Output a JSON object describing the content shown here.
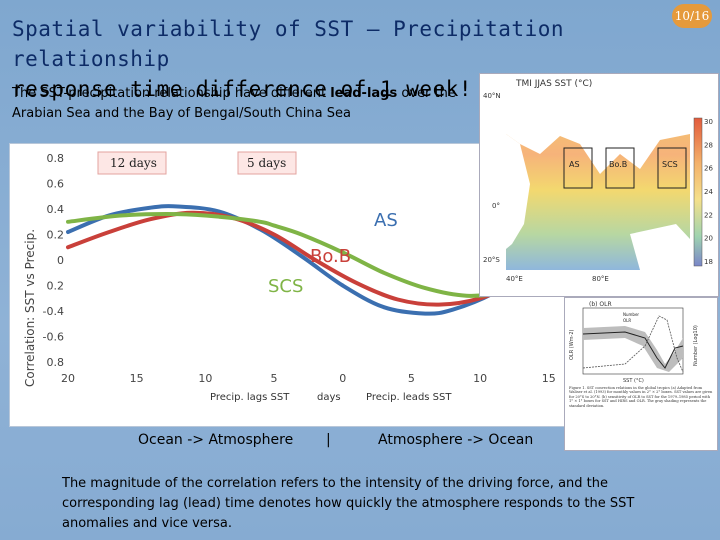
{
  "title_line1": "Spatial variability of SST – Precipitation relationship",
  "title_line2": "response time difference of 1 week!",
  "page_number": "10/16",
  "intro_before": "The SST-precipitation relationship have different ",
  "intro_bold": "lead-lags",
  "intro_after": " over the Arabian Sea and the Bay of Bengal/South China Sea",
  "chart_data": {
    "type": "line",
    "ylabel": "Correlation: SST vs Precip.",
    "x_ticks": [
      "20",
      "15",
      "10",
      "5",
      "0",
      "5",
      "10",
      "15"
    ],
    "y_ticks": [
      "0.8",
      "0.6",
      "0.4",
      "0.2",
      "0",
      "0.2",
      "-0.4",
      "-0.6",
      "0.8"
    ],
    "xlim": [
      -20,
      18
    ],
    "ylim": [
      -0.8,
      0.8
    ],
    "x_axis_text": {
      "left": "Precip. lags SST",
      "center": "days",
      "right": "Precip. leads SST"
    },
    "lag_annotations": [
      "12 days",
      "5 days"
    ],
    "series": [
      {
        "name": "AS",
        "color": "#3b6fb0",
        "x": [
          -20,
          -17,
          -14,
          -12,
          -9,
          -6,
          -3,
          0,
          3,
          6,
          8,
          11,
          14,
          17
        ],
        "y": [
          0.22,
          0.35,
          0.41,
          0.42,
          0.38,
          0.24,
          0.03,
          -0.2,
          -0.37,
          -0.42,
          -0.39,
          -0.26,
          -0.06,
          0.16
        ]
      },
      {
        "name": "Bo.B",
        "color": "#c9403a",
        "x": [
          -20,
          -17,
          -14,
          -11,
          -8,
          -5,
          -2,
          1,
          4,
          7,
          10,
          13,
          16,
          17
        ],
        "y": [
          0.1,
          0.22,
          0.32,
          0.37,
          0.33,
          0.2,
          0.0,
          -0.18,
          -0.31,
          -0.35,
          -0.3,
          -0.16,
          0.03,
          0.08
        ]
      },
      {
        "name": "SCS",
        "color": "#7fb446",
        "x": [
          -20,
          -16,
          -12,
          -9,
          -6,
          -5,
          -3,
          0,
          3,
          6,
          9,
          12,
          15,
          17
        ],
        "y": [
          0.3,
          0.35,
          0.36,
          0.34,
          0.3,
          0.27,
          0.2,
          0.06,
          -0.1,
          -0.22,
          -0.28,
          -0.25,
          -0.15,
          -0.06
        ]
      }
    ]
  },
  "bottom_labels": {
    "left": "Ocean -> Atmosphere",
    "center": "|",
    "right": "Atmosphere -> Ocean"
  },
  "map": {
    "title": "TMI JJAS SST (°C)",
    "boxes": [
      "AS",
      "Bo.B",
      "SCS"
    ],
    "lat_labels": [
      "40°N",
      "0°",
      "20°S"
    ],
    "lon_labels": [
      "40°E",
      "80°E"
    ],
    "colorbar": [
      "30",
      "28",
      "26",
      "24",
      "22",
      "20",
      "18"
    ]
  },
  "olr_panel": {
    "label": "(b) OLR",
    "xlabel": "SST (°C)",
    "ylabel_left": "OLR (Wm-2)",
    "ylabel_right": "Number (Log10)",
    "legend": [
      "Number",
      "OLR"
    ],
    "caption": "Figure 1. SST convection relations in the global tropics (a) Adapted from Waliser et al. (1993) for monthly values in 2° × 2° boxes. SST values are given for 20°S to 20°N. (b) sensitivity of OLR to SST for the 1979–1985 period with 1° × 1° boxes for SST and HIRS and OLR. The gray shading represents the standard deviation."
  },
  "footer": "The magnitude of the correlation refers to the intensity of the driving force, and the corresponding lag (lead) time denotes how quickly the atmosphere responds to the SST anomalies and vice versa."
}
